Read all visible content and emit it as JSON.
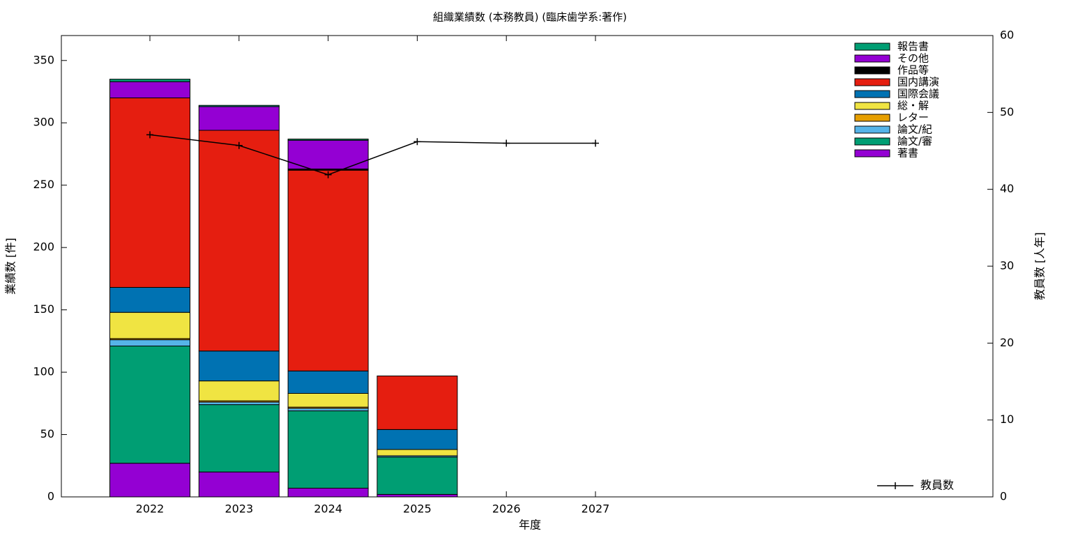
{
  "chart_data": {
    "type": "bar",
    "stacked": true,
    "title": "組織業績数 (本務教員) (臨床歯学系:著作)",
    "x_label": "年度",
    "y_label": "業績数 [件]",
    "y2_label": "教員数 [人年]",
    "categories": [
      "2022",
      "2023",
      "2024",
      "2025",
      "2026",
      "2027"
    ],
    "ylim": [
      0,
      370
    ],
    "yticks": [
      0,
      50,
      100,
      150,
      200,
      250,
      300,
      350
    ],
    "y2lim": [
      0,
      60
    ],
    "y2ticks": [
      0,
      10,
      20,
      30,
      40,
      50,
      60
    ],
    "legend": "upper right",
    "series": [
      {
        "name": "著書",
        "color": "#9400d3",
        "values": [
          27,
          20,
          7,
          2,
          null,
          null
        ]
      },
      {
        "name": "論文/審",
        "color": "#009e73",
        "values": [
          94,
          54,
          62,
          30,
          null,
          null
        ]
      },
      {
        "name": "論文/紀",
        "color": "#56b4e9",
        "values": [
          5,
          2,
          2,
          1,
          null,
          null
        ]
      },
      {
        "name": "レター",
        "color": "#e69f00",
        "values": [
          1,
          1,
          1,
          0,
          null,
          null
        ]
      },
      {
        "name": "総・解",
        "color": "#f0e442",
        "values": [
          21,
          16,
          11,
          5,
          null,
          null
        ]
      },
      {
        "name": "国際会議",
        "color": "#0072b2",
        "values": [
          20,
          24,
          18,
          16,
          null,
          null
        ]
      },
      {
        "name": "国内講演",
        "color": "#e51e10",
        "values": [
          152,
          177,
          161,
          43,
          null,
          null
        ]
      },
      {
        "name": "作品等",
        "color": "#000000",
        "values": [
          0,
          0,
          1,
          0,
          null,
          null
        ]
      },
      {
        "name": "その他",
        "color": "#9400d3",
        "values": [
          13,
          19,
          23,
          0,
          null,
          null
        ]
      },
      {
        "name": "報告書",
        "color": "#009e73",
        "values": [
          2,
          1,
          1,
          0,
          null,
          null
        ]
      },
      {
        "name": "教員数",
        "type": "line",
        "axis": "y2",
        "color": "#000000",
        "values": [
          47.1,
          45.7,
          41.9,
          46.2,
          46.0,
          46.0
        ]
      }
    ]
  }
}
